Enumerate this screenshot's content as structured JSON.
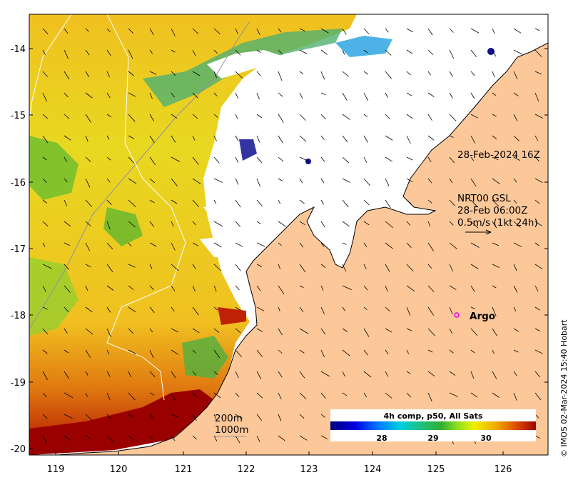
{
  "map": {
    "lon_ticks": [
      "119",
      "120",
      "121",
      "122",
      "123",
      "124",
      "125",
      "126"
    ],
    "lat_ticks": [
      "-14",
      "-15",
      "-16",
      "-17",
      "-18",
      "-19",
      "-20"
    ],
    "timestamp_label": "28-Feb-2024 16Z",
    "current_info": {
      "line1": "NRT00 GSL",
      "line2": "28-Feb 06:00Z",
      "line3": "0.5m/s (1kt 24h)"
    },
    "argo_label": "Argo",
    "argo_color": "#e000e0",
    "isobath_labels": [
      "200m",
      "1000m"
    ],
    "land_color": "#fcc89a",
    "credit": "© IMOS 02-Mar-2024 15:40 Hobart"
  },
  "colorbar": {
    "title": "4h comp, p50, All Sats",
    "ticks": [
      "28",
      "29",
      "30"
    ]
  }
}
